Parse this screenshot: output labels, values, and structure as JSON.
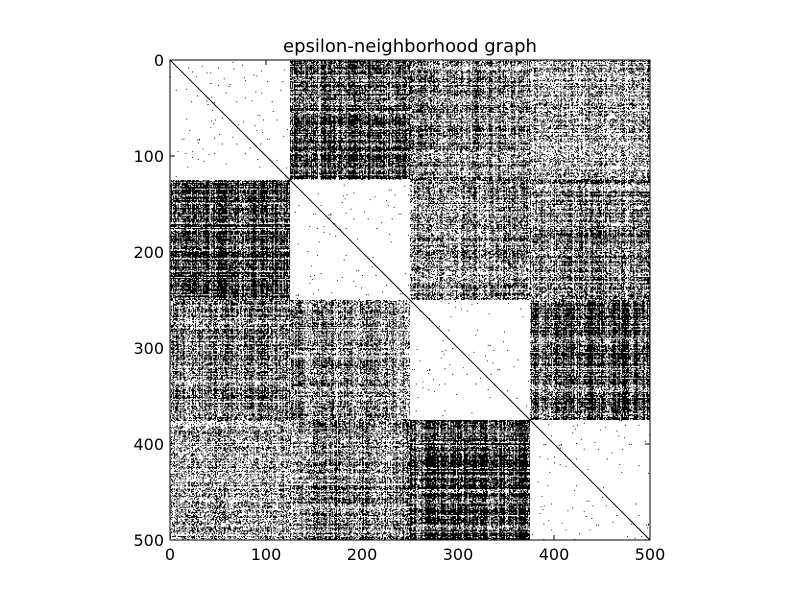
{
  "chart_data": {
    "type": "heatmap",
    "title": "epsilon-neighborhood graph",
    "xlabel": "",
    "ylabel": "",
    "xlim": [
      0,
      500
    ],
    "ylim": [
      500,
      0
    ],
    "x_ticks": [
      0,
      100,
      200,
      300,
      400,
      500
    ],
    "y_ticks": [
      0,
      100,
      200,
      300,
      400,
      500
    ],
    "x_tick_labels": [
      "0",
      "100",
      "200",
      "300",
      "400",
      "500"
    ],
    "y_tick_labels": [
      "0",
      "100",
      "200",
      "300",
      "400",
      "500"
    ],
    "n_nodes": 500,
    "block_boundaries": [
      0,
      125,
      250,
      375,
      500
    ],
    "blocks": [
      "0-124",
      "125-249",
      "250-374",
      "375-499"
    ],
    "block_density": [
      [
        0.005,
        0.8,
        0.5,
        0.35
      ],
      [
        0.8,
        0.005,
        0.45,
        0.5
      ],
      [
        0.5,
        0.45,
        0.005,
        0.8
      ],
      [
        0.35,
        0.5,
        0.8,
        0.005
      ]
    ],
    "diagonal": true,
    "colors": {
      "edge": "#000000",
      "background": "#ffffff"
    },
    "grid": false
  }
}
